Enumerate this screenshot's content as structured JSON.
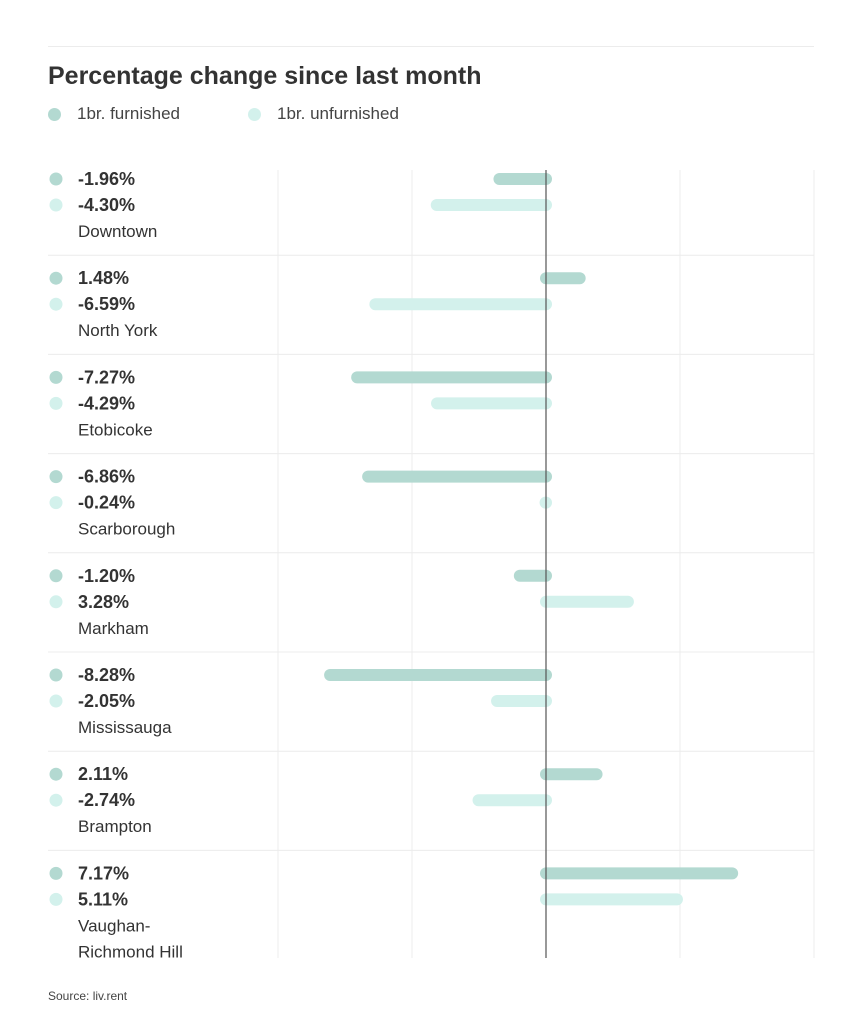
{
  "chart_data": {
    "type": "bar",
    "orientation": "horizontal",
    "title": "Percentage change since last month",
    "categories": [
      "Downtown",
      "North York",
      "Etobicoke",
      "Scarborough",
      "Markham",
      "Mississauga",
      "Brampton",
      "Vaughan-\nRichmond Hill"
    ],
    "series": [
      {
        "name": "1br. furnished",
        "color": "#b3d9d1",
        "values": [
          -1.96,
          1.48,
          -7.27,
          -6.86,
          -1.2,
          -8.28,
          2.11,
          7.17
        ],
        "labels": [
          "-1.96%",
          "1.48%",
          "-7.27%",
          "-6.86%",
          "-1.20%",
          "-8.28%",
          "2.11%",
          "7.17%"
        ]
      },
      {
        "name": "1br. unfurnished",
        "color": "#d3f1ec",
        "values": [
          -4.3,
          -6.59,
          -4.29,
          -0.24,
          3.28,
          -2.05,
          -2.74,
          5.11
        ],
        "labels": [
          "-4.30%",
          "-6.59%",
          "-4.29%",
          "-0.24%",
          "3.28%",
          "-2.05%",
          "-2.74%",
          "5.11%"
        ]
      }
    ],
    "xlim": [
      -10,
      10
    ],
    "grid": true,
    "legend": "top-left",
    "source": "Source: liv.rent"
  }
}
